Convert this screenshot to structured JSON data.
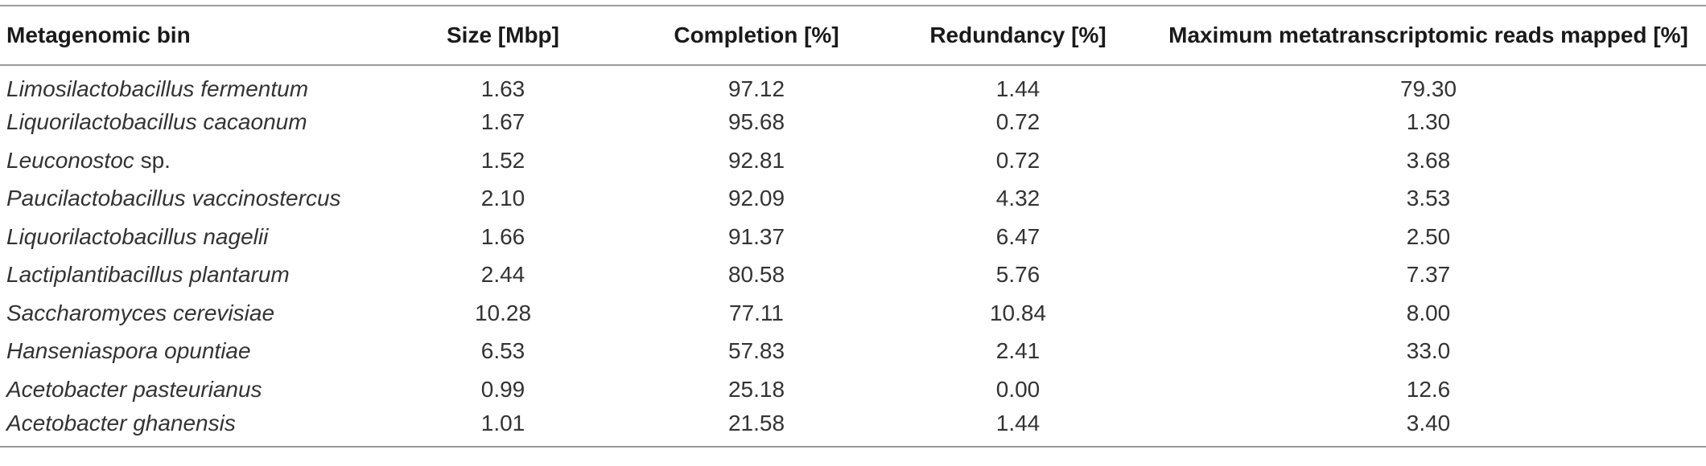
{
  "table": {
    "headers": [
      "Metagenomic bin",
      "Size [Mbp]",
      "Completion [%]",
      "Redundancy [%]",
      "Maximum metatranscriptomic reads mapped [%]"
    ],
    "rows": [
      {
        "name_italic": "Limosilactobacillus fermentum",
        "name_suffix": "",
        "size": "1.63",
        "completion": "97.12",
        "redundancy": "1.44",
        "reads": "79.30"
      },
      {
        "name_italic": "Liquorilactobacillus cacaonum",
        "name_suffix": "",
        "size": "1.67",
        "completion": "95.68",
        "redundancy": "0.72",
        "reads": "1.30"
      },
      {
        "name_italic": "Leuconostoc",
        "name_suffix": " sp.",
        "size": "1.52",
        "completion": "92.81",
        "redundancy": "0.72",
        "reads": "3.68"
      },
      {
        "name_italic": "Paucilactobacillus vaccinostercus",
        "name_suffix": "",
        "size": "2.10",
        "completion": "92.09",
        "redundancy": "4.32",
        "reads": "3.53"
      },
      {
        "name_italic": "Liquorilactobacillus nagelii",
        "name_suffix": "",
        "size": "1.66",
        "completion": "91.37",
        "redundancy": "6.47",
        "reads": "2.50"
      },
      {
        "name_italic": "Lactiplantibacillus plantarum",
        "name_suffix": "",
        "size": "2.44",
        "completion": "80.58",
        "redundancy": "5.76",
        "reads": "7.37"
      },
      {
        "name_italic": "Saccharomyces cerevisiae",
        "name_suffix": "",
        "size": "10.28",
        "completion": "77.11",
        "redundancy": "10.84",
        "reads": "8.00"
      },
      {
        "name_italic": "Hanseniaspora opuntiae",
        "name_suffix": "",
        "size": "6.53",
        "completion": "57.83",
        "redundancy": "2.41",
        "reads": "33.0"
      },
      {
        "name_italic": "Acetobacter pasteurianus",
        "name_suffix": "",
        "size": "0.99",
        "completion": "25.18",
        "redundancy": "0.00",
        "reads": "12.6"
      },
      {
        "name_italic": "Acetobacter ghanensis",
        "name_suffix": "",
        "size": "1.01",
        "completion": "21.58",
        "redundancy": "1.44",
        "reads": "3.40"
      }
    ]
  }
}
